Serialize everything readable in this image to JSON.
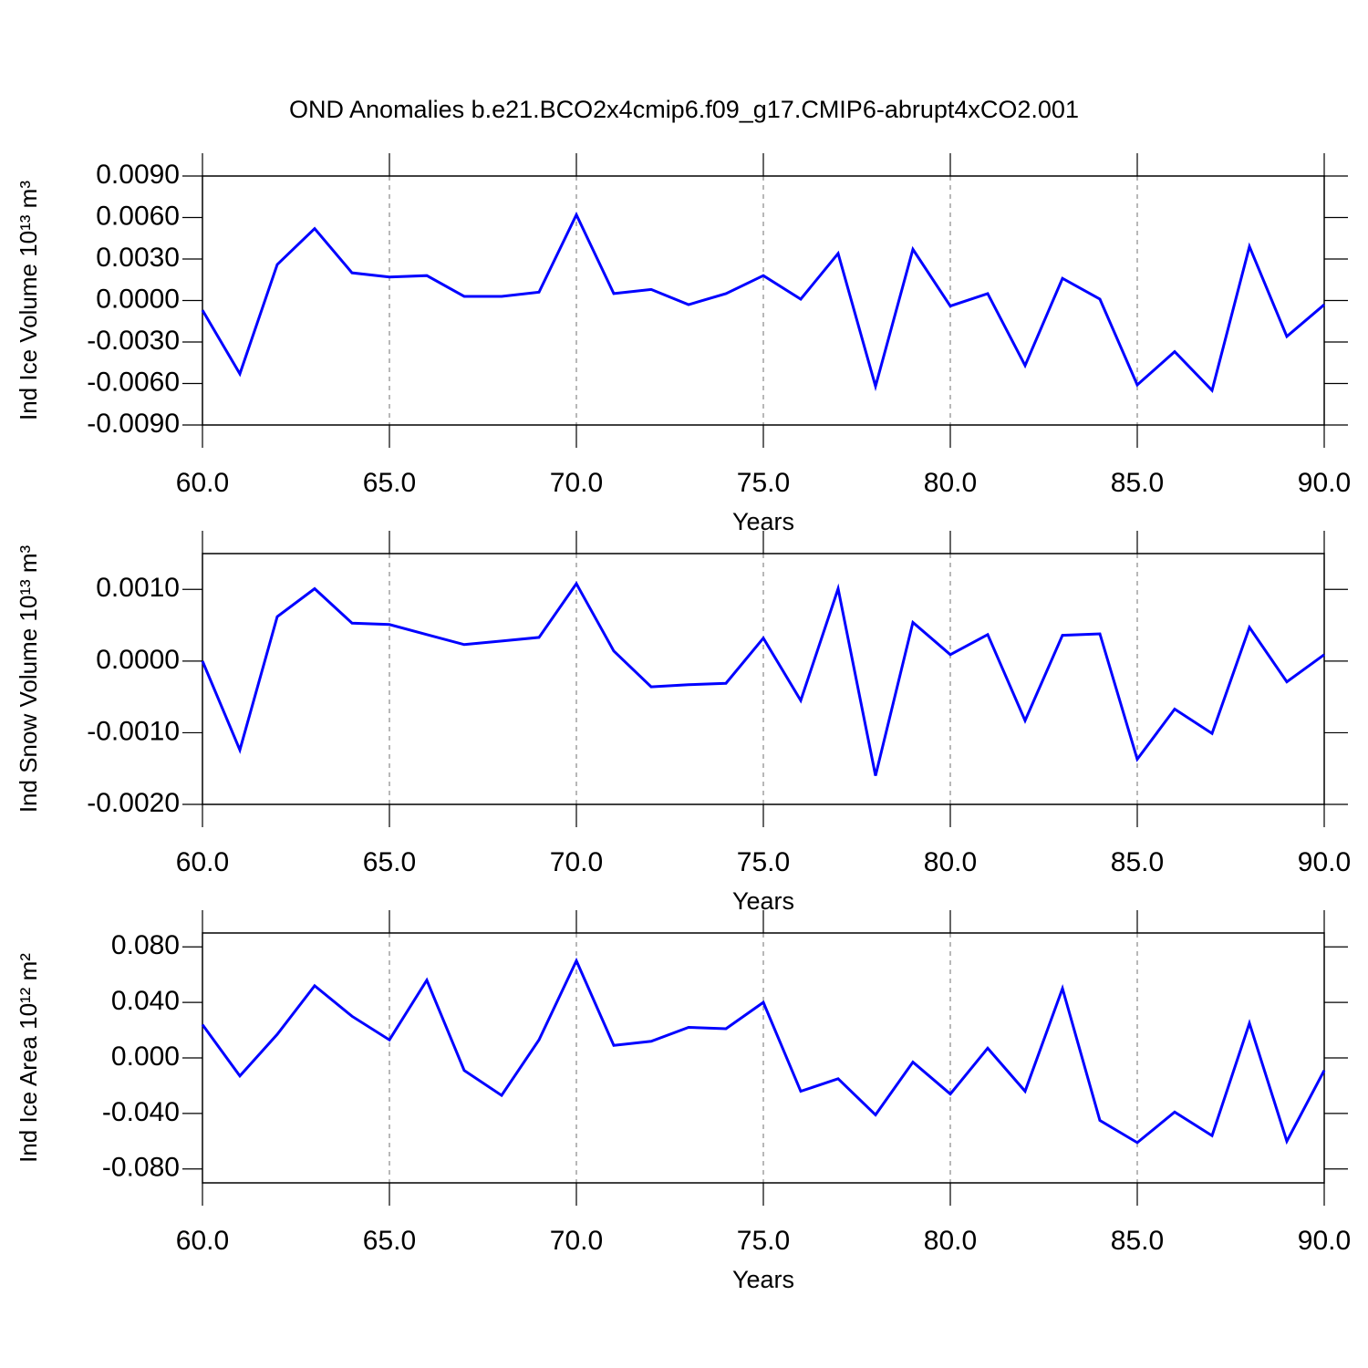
{
  "title": "OND Anomalies b.e21.BCO2x4cmip6.f09_g17.CMIP6-abrupt4xCO2.001",
  "chart_data": [
    {
      "type": "line",
      "ylabel": "Ind Ice Volume 10¹³ m³",
      "xlabel": "Years",
      "color": "#0000ff",
      "grid": true,
      "x": [
        60,
        61,
        62,
        63,
        64,
        65,
        66,
        67,
        68,
        69,
        70,
        71,
        72,
        73,
        74,
        75,
        76,
        77,
        78,
        79,
        80,
        81,
        82,
        83,
        84,
        85,
        86,
        87,
        88,
        89,
        90
      ],
      "values": [
        -0.0007,
        -0.0053,
        0.0026,
        0.0052,
        0.002,
        0.0017,
        0.0018,
        0.0003,
        0.0003,
        0.0006,
        0.0062,
        0.0005,
        0.0008,
        -0.0003,
        0.0005,
        0.0018,
        0.0001,
        0.0034,
        -0.0062,
        0.0037,
        -0.0004,
        0.0005,
        -0.0047,
        0.0016,
        0.0001,
        -0.0061,
        -0.0037,
        -0.0065,
        0.0039,
        -0.0026,
        -0.0003
      ],
      "xlim": [
        60,
        90
      ],
      "xticks": [
        {
          "value": 60,
          "label": "60.0"
        },
        {
          "value": 65,
          "label": "65.0"
        },
        {
          "value": 70,
          "label": "70.0"
        },
        {
          "value": 75,
          "label": "75.0"
        },
        {
          "value": 80,
          "label": "80.0"
        },
        {
          "value": 85,
          "label": "85.0"
        },
        {
          "value": 90,
          "label": "90.0"
        }
      ],
      "ylim": [
        -0.009,
        0.009
      ],
      "yticks": [
        {
          "value": -0.009,
          "label": "-0.0090"
        },
        {
          "value": -0.006,
          "label": "-0.0060"
        },
        {
          "value": -0.003,
          "label": "-0.0030"
        },
        {
          "value": 0,
          "label": "0.0000"
        },
        {
          "value": 0.003,
          "label": "0.0030"
        },
        {
          "value": 0.006,
          "label": "0.0060"
        },
        {
          "value": 0.009,
          "label": "0.0090"
        }
      ]
    },
    {
      "type": "line",
      "ylabel": "Ind Snow Volume 10¹³ m³",
      "xlabel": "Years",
      "color": "#0000ff",
      "grid": true,
      "x": [
        60,
        61,
        62,
        63,
        64,
        65,
        66,
        67,
        68,
        69,
        70,
        71,
        72,
        73,
        74,
        75,
        76,
        77,
        78,
        79,
        80,
        81,
        82,
        83,
        84,
        85,
        86,
        87,
        88,
        89,
        90
      ],
      "values": [
        0,
        -0.00124,
        0.00062,
        0.00101,
        0.00053,
        0.00051,
        0.00037,
        0.00023,
        0.00028,
        0.00033,
        0.00108,
        0.00014,
        -0.00036,
        -0.00033,
        -0.00031,
        0.00032,
        -0.00055,
        0.00101,
        -0.0016,
        0.00054,
        9e-05,
        0.00037,
        -0.00083,
        0.00036,
        0.00038,
        -0.00137,
        -0.00067,
        -0.00101,
        0.00047,
        -0.00029,
        9e-05
      ],
      "xlim": [
        60,
        90
      ],
      "xticks": [
        {
          "value": 60,
          "label": "60.0"
        },
        {
          "value": 65,
          "label": "65.0"
        },
        {
          "value": 70,
          "label": "70.0"
        },
        {
          "value": 75,
          "label": "75.0"
        },
        {
          "value": 80,
          "label": "80.0"
        },
        {
          "value": 85,
          "label": "85.0"
        },
        {
          "value": 90,
          "label": "90.0"
        }
      ],
      "ylim": [
        -0.002,
        0.0015
      ],
      "yticks": [
        {
          "value": -0.002,
          "label": "-0.0020"
        },
        {
          "value": -0.001,
          "label": "-0.0010"
        },
        {
          "value": 0,
          "label": "0.0000"
        },
        {
          "value": 0.001,
          "label": "0.0010"
        }
      ]
    },
    {
      "type": "line",
      "ylabel": "Ind Ice Area 10¹² m²",
      "xlabel": "Years",
      "color": "#0000ff",
      "grid": true,
      "x": [
        60,
        61,
        62,
        63,
        64,
        65,
        66,
        67,
        68,
        69,
        70,
        71,
        72,
        73,
        74,
        75,
        76,
        77,
        78,
        79,
        80,
        81,
        82,
        83,
        84,
        85,
        86,
        87,
        88,
        89,
        90
      ],
      "values": [
        0.024,
        -0.013,
        0.017,
        0.052,
        0.03,
        0.013,
        0.056,
        -0.009,
        -0.027,
        0.013,
        0.07,
        0.009,
        0.012,
        0.022,
        0.021,
        0.04,
        -0.024,
        -0.015,
        -0.041,
        -0.003,
        -0.026,
        0.007,
        -0.024,
        0.05,
        -0.045,
        -0.061,
        -0.039,
        -0.056,
        0.025,
        -0.06,
        -0.009
      ],
      "xlim": [
        60,
        90
      ],
      "xticks": [
        {
          "value": 60,
          "label": "60.0"
        },
        {
          "value": 65,
          "label": "65.0"
        },
        {
          "value": 70,
          "label": "70.0"
        },
        {
          "value": 75,
          "label": "75.0"
        },
        {
          "value": 80,
          "label": "80.0"
        },
        {
          "value": 85,
          "label": "85.0"
        },
        {
          "value": 90,
          "label": "90.0"
        }
      ],
      "ylim": [
        -0.09,
        0.09
      ],
      "yticks": [
        {
          "value": -0.08,
          "label": "-0.080"
        },
        {
          "value": -0.04,
          "label": "-0.040"
        },
        {
          "value": 0,
          "label": "0.000"
        },
        {
          "value": 0.04,
          "label": "0.040"
        },
        {
          "value": 0.08,
          "label": "0.080"
        }
      ]
    }
  ]
}
